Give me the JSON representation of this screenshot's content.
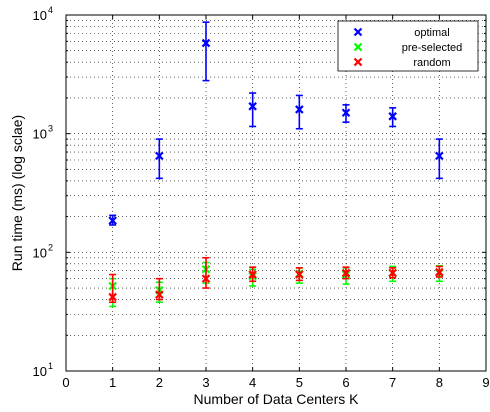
{
  "chart_data": {
    "type": "scatter",
    "title": "",
    "xlabel": "Number of Data Centers K",
    "ylabel": "Run time (ms) (log sclae)",
    "x_ticks": [
      "0",
      "1",
      "2",
      "3",
      "4",
      "5",
      "6",
      "7",
      "8",
      "9"
    ],
    "y_ticks": [
      {
        "base": "10",
        "exp": "1"
      },
      {
        "base": "10",
        "exp": "2"
      },
      {
        "base": "10",
        "exp": "3"
      },
      {
        "base": "10",
        "exp": "4"
      }
    ],
    "xlim": [
      0,
      9
    ],
    "ylim": [
      10,
      10000
    ],
    "y_scale": "log",
    "grid": true,
    "legend_position": "top-right",
    "series": [
      {
        "name": "optimal",
        "color": "#0000ff",
        "marker": "x",
        "points": [
          {
            "x": 1,
            "y": 185,
            "low": 170,
            "high": 205
          },
          {
            "x": 2,
            "y": 650,
            "low": 420,
            "high": 900
          },
          {
            "x": 3,
            "y": 5800,
            "low": 2800,
            "high": 8700
          },
          {
            "x": 4,
            "y": 1700,
            "low": 1150,
            "high": 2200
          },
          {
            "x": 5,
            "y": 1600,
            "low": 1100,
            "high": 2100
          },
          {
            "x": 6,
            "y": 1500,
            "low": 1250,
            "high": 1750
          },
          {
            "x": 7,
            "y": 1400,
            "low": 1150,
            "high": 1650
          },
          {
            "x": 8,
            "y": 650,
            "low": 420,
            "high": 900
          }
        ]
      },
      {
        "name": "pre-selected",
        "color": "#00ff00",
        "marker": "x",
        "points": [
          {
            "x": 1,
            "y": 52,
            "low": 35,
            "high": 60
          },
          {
            "x": 2,
            "y": 48,
            "low": 38,
            "high": 56
          },
          {
            "x": 3,
            "y": 72,
            "low": 55,
            "high": 82
          },
          {
            "x": 4,
            "y": 63,
            "low": 52,
            "high": 72
          },
          {
            "x": 5,
            "y": 66,
            "low": 55,
            "high": 74
          },
          {
            "x": 6,
            "y": 65,
            "low": 54,
            "high": 74
          },
          {
            "x": 7,
            "y": 67,
            "low": 57,
            "high": 76
          },
          {
            "x": 8,
            "y": 67,
            "low": 57,
            "high": 77
          }
        ]
      },
      {
        "name": "random",
        "color": "#ff0000",
        "marker": "x",
        "points": [
          {
            "x": 1,
            "y": 42,
            "low": 38,
            "high": 65
          },
          {
            "x": 2,
            "y": 44,
            "low": 40,
            "high": 60
          },
          {
            "x": 3,
            "y": 60,
            "low": 50,
            "high": 90
          },
          {
            "x": 4,
            "y": 65,
            "low": 57,
            "high": 75
          },
          {
            "x": 5,
            "y": 65,
            "low": 58,
            "high": 74
          },
          {
            "x": 6,
            "y": 67,
            "low": 60,
            "high": 75
          },
          {
            "x": 7,
            "y": 67,
            "low": 61,
            "high": 74
          },
          {
            "x": 8,
            "y": 68,
            "low": 62,
            "high": 76
          }
        ]
      }
    ]
  }
}
